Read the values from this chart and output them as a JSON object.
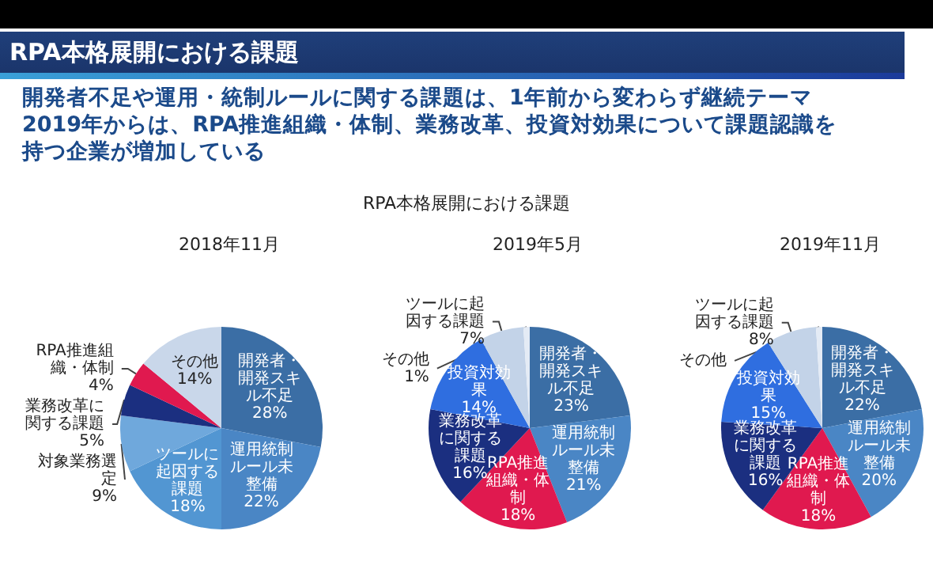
{
  "chart_data": [
    {
      "type": "other",
      "title": "RPA本格展開における課題",
      "subtitle": "開発者不足や運用・統制ルールに関する課題は、1年前から変わらず継続テーマ",
      "annotations": [
        "2019年からは、RPA推進組織・体制、業務改革、投資対効果について課題認識を持つ企業が増加している",
        "RPA本格展開における課題"
      ]
    },
    {
      "type": "pie",
      "title": "2018年11月",
      "categories": [
        "開発者・開発スキル不足",
        "運用統制ルール未整備",
        "ツールに起因する課題",
        "対象業務選定",
        "業務改革に関する課題",
        "RPA推進組織・体制",
        "その他"
      ],
      "values": [
        28,
        22,
        18,
        9,
        5,
        4,
        14
      ],
      "value_labels": [
        "28%",
        "22%",
        "18%",
        "9%",
        "5%",
        "4%",
        "14%"
      ],
      "colors": [
        "#3b6ea5",
        "#4a86c5",
        "#5296d2",
        "#6fa8dc",
        "#1b2f80",
        "#e0194f",
        "#c9d7ea"
      ]
    },
    {
      "type": "pie",
      "title": "2019年5月",
      "categories": [
        "開発者・開発スキル不足",
        "運用統制ルール未整備",
        "RPA推進組織・体制",
        "業務改革に関する課題",
        "投資対効果",
        "ツールに起因する課題",
        "その他"
      ],
      "values": [
        23,
        21,
        18,
        16,
        14,
        7,
        1
      ],
      "value_labels": [
        "23%",
        "21%",
        "18%",
        "16%",
        "14%",
        "7%",
        "1%"
      ],
      "colors": [
        "#3b6ea5",
        "#4a86c5",
        "#e0194f",
        "#1b2f80",
        "#2f6ee0",
        "#c3d3e8",
        "#e4ebf5"
      ]
    },
    {
      "type": "pie",
      "title": "2019年11月",
      "categories": [
        "開発者・開発スキル不足",
        "運用統制ルール未整備",
        "RPA推進組織・体制",
        "業務改革に関する課題",
        "投資対効果",
        "ツールに起因する課題",
        "その他"
      ],
      "values": [
        22,
        20,
        18,
        16,
        15,
        8,
        1
      ],
      "value_labels": [
        "22%",
        "20%",
        "18%",
        "16%",
        "15%",
        "8%",
        null
      ],
      "colors": [
        "#3b6ea5",
        "#4a86c5",
        "#e0194f",
        "#1b2f80",
        "#2f6ee0",
        "#c3d3e8",
        "#e4ebf5"
      ]
    }
  ]
}
